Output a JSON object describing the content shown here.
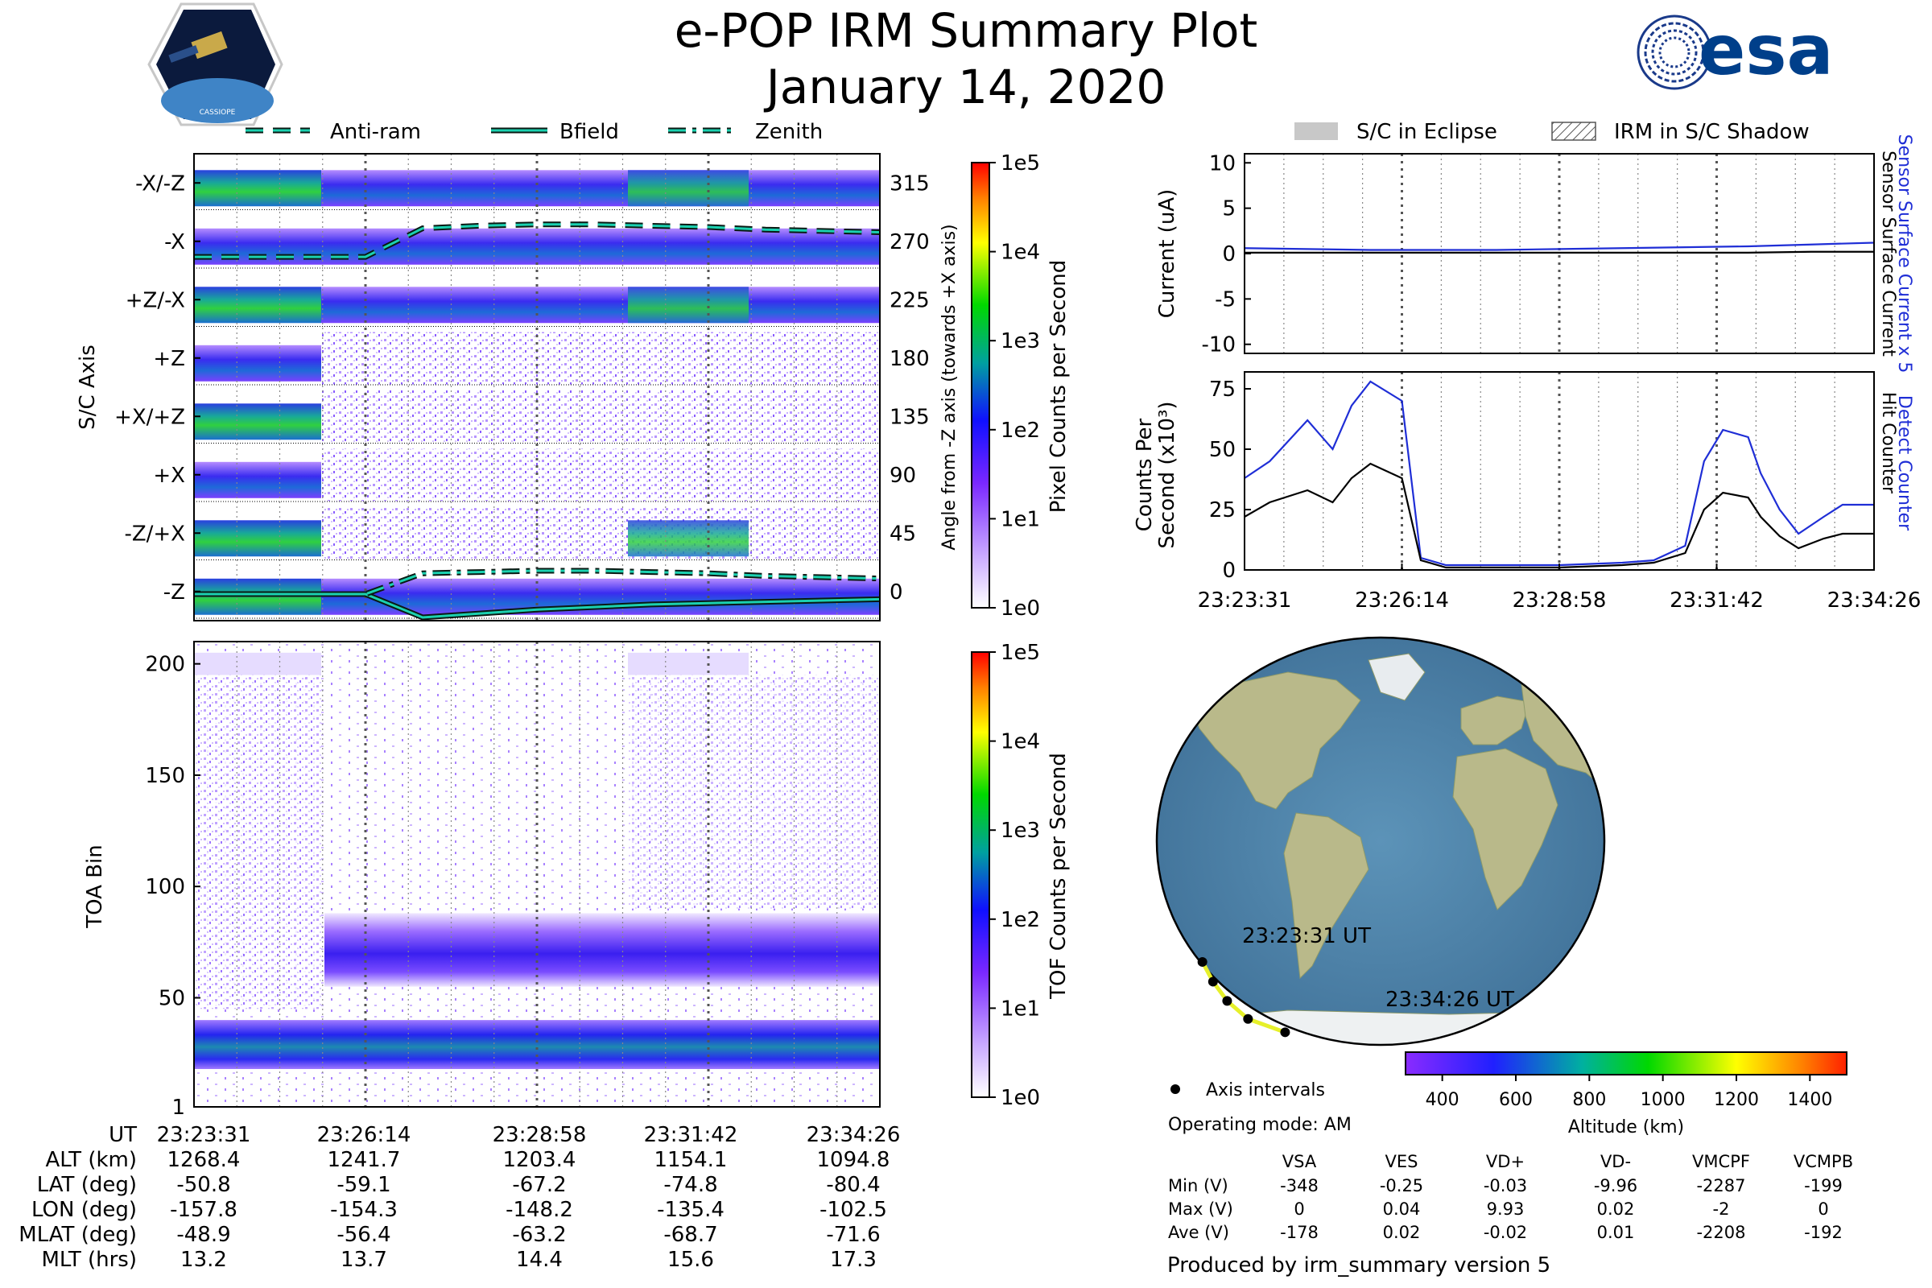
{
  "header": {
    "title_line1": "e-POP IRM Summary Plot",
    "title_line2": "January 14, 2020",
    "cassiope_logo_text": "CASSIOPE",
    "esa_logo_text": "esa"
  },
  "legend_top_left": [
    {
      "label": "Anti-ram",
      "style": "dashed"
    },
    {
      "label": "Bfield",
      "style": "solid"
    },
    {
      "label": "Zenith",
      "style": "dashdot"
    }
  ],
  "legend_top_right": [
    {
      "label": "S/C in Eclipse",
      "style": "filled-gray"
    },
    {
      "label": "IRM in S/C Shadow",
      "style": "hatched"
    }
  ],
  "colors": {
    "line_cyan": "#1bd1b0",
    "blue_trace": "#1f2ed6",
    "map_ocean": "#4a7ea3",
    "map_land": "#b7b88a",
    "track": "#e6f02a"
  },
  "chart_data": [
    {
      "type": "heatmap",
      "id": "pixel_counts",
      "ylabel": "S/C Axis",
      "y_tick_labels": [
        "-X/-Z",
        "-X",
        "+Z/-X",
        "+Z",
        "+X/+Z",
        "+X",
        "-Z/+X",
        "-Z"
      ],
      "right_axis_label": "Angle from -Z axis (towards +X axis)",
      "right_tick_labels": [
        "315",
        "270",
        "225",
        "180",
        "135",
        "90",
        "45",
        "0"
      ],
      "colorbar_label": "Pixel Counts per Second",
      "colorbar_ticks": [
        "1e0",
        "1e1",
        "1e2",
        "1e3",
        "1e4",
        "1e5"
      ],
      "x_range": [
        "23:23:31",
        "23:34:26"
      ],
      "series": [
        {
          "name": "Anti-ram",
          "angle_deg": [
            258,
            258,
            258,
            258,
            280,
            282,
            283,
            283,
            282,
            281,
            279,
            278,
            277
          ]
        },
        {
          "name": "Bfield",
          "angle_deg": [
            -2,
            -2,
            -2,
            -2,
            -20,
            -17,
            -14,
            -12,
            -10,
            -9,
            -8,
            -7,
            -6
          ]
        },
        {
          "name": "Zenith",
          "angle_deg": [
            -2,
            -2,
            -2,
            -2,
            14,
            15,
            16,
            16,
            15,
            14,
            12,
            11,
            10
          ]
        }
      ]
    },
    {
      "type": "heatmap",
      "id": "tof_counts",
      "ylabel": "TOA Bin",
      "y_tick_labels": [
        "1",
        "50",
        "100",
        "150",
        "200"
      ],
      "ylim": [
        1,
        210
      ],
      "colorbar_label": "TOF Counts per Second",
      "colorbar_ticks": [
        "1e0",
        "1e1",
        "1e2",
        "1e3",
        "1e4",
        "1e5"
      ],
      "x_range": [
        "23:23:31",
        "23:34:26"
      ]
    },
    {
      "type": "line",
      "id": "current",
      "ylabel": "Current (uA)",
      "yticks": [
        -10,
        -5,
        0,
        5,
        10
      ],
      "ylim": [
        -11,
        11
      ],
      "right_labels": [
        "Sensor Surface Current x 5",
        "Sensor Surface Current"
      ],
      "x": [
        0,
        1,
        2,
        3,
        4,
        5,
        6,
        7,
        8,
        9,
        10
      ],
      "series": [
        {
          "name": "Sensor Surface Current x 5",
          "color": "#1f2ed6",
          "values": [
            0.6,
            0.5,
            0.4,
            0.4,
            0.4,
            0.5,
            0.6,
            0.7,
            0.8,
            1.0,
            1.2
          ]
        },
        {
          "name": "Sensor Surface Current",
          "color": "#000000",
          "values": [
            0.1,
            0.1,
            0.1,
            0.1,
            0.1,
            0.1,
            0.1,
            0.1,
            0.1,
            0.2,
            0.2
          ]
        }
      ]
    },
    {
      "type": "line",
      "id": "counts",
      "ylabel": "Counts Per Second (x10^3)",
      "ylabel_line1": "Counts Per",
      "ylabel_line2": "Second (x10³)",
      "yticks": [
        0,
        25,
        50,
        75
      ],
      "ylim": [
        0,
        82
      ],
      "right_labels": [
        "Detect Counter",
        "Hit Counter"
      ],
      "x_tick_labels": [
        "23:23:31",
        "23:26:14",
        "23:28:58",
        "23:31:42",
        "23:34:26"
      ],
      "x": [
        0,
        0.04,
        0.1,
        0.14,
        0.17,
        0.2,
        0.25,
        0.28,
        0.32,
        0.36,
        0.4,
        0.5,
        0.6,
        0.65,
        0.7,
        0.73,
        0.76,
        0.8,
        0.82,
        0.85,
        0.88,
        0.92,
        0.95,
        1.0
      ],
      "series": [
        {
          "name": "Detect Counter",
          "color": "#1f2ed6",
          "values": [
            38,
            45,
            62,
            50,
            68,
            78,
            70,
            5,
            2,
            2,
            2,
            2,
            3,
            4,
            10,
            45,
            58,
            55,
            40,
            25,
            15,
            22,
            27,
            27
          ]
        },
        {
          "name": "Hit Counter",
          "color": "#000000",
          "values": [
            22,
            28,
            33,
            28,
            38,
            44,
            38,
            4,
            1,
            1,
            1,
            1,
            2,
            3,
            7,
            25,
            32,
            30,
            22,
            14,
            9,
            13,
            15,
            15
          ]
        }
      ]
    },
    {
      "type": "map",
      "id": "orbit_track",
      "start_label": "23:23:31 UT",
      "end_label": "23:34:26 UT",
      "track_lon": [
        -157.8,
        -154.3,
        -148.2,
        -135.4,
        -102.5
      ],
      "track_lat": [
        -50.8,
        -59.1,
        -67.2,
        -74.8,
        -80.4
      ],
      "altitude_colorbar_label": "Altitude (km)",
      "altitude_ticks": [
        "400",
        "600",
        "800",
        "1000",
        "1200",
        "1400"
      ]
    }
  ],
  "orbit_table": {
    "headers": [
      "UT",
      "ALT (km)",
      "LAT (deg)",
      "LON (deg)",
      "MLAT (deg)",
      "MLT (hrs)"
    ],
    "columns": [
      [
        "23:23:31",
        "1268.4",
        "-50.8",
        "-157.8",
        "-48.9",
        "13.2"
      ],
      [
        "23:26:14",
        "1241.7",
        "-59.1",
        "-154.3",
        "-56.4",
        "13.7"
      ],
      [
        "23:28:58",
        "1203.4",
        "-67.2",
        "-148.2",
        "-63.2",
        "14.4"
      ],
      [
        "23:31:42",
        "1154.1",
        "-74.8",
        "-135.4",
        "-68.7",
        "15.6"
      ],
      [
        "23:34:26",
        "1094.8",
        "-80.4",
        "-102.5",
        "-71.6",
        "17.3"
      ]
    ]
  },
  "map_legend": {
    "axis_intervals": "Axis intervals",
    "operating_mode": "Operating mode: AM"
  },
  "voltage_table": {
    "headers": [
      "VSA",
      "VES",
      "VD+",
      "VD-",
      "VMCPF",
      "VCMPB"
    ],
    "rows": [
      {
        "label": "Min (V)",
        "values": [
          "-348",
          "-0.25",
          "-0.03",
          "-9.96",
          "-2287",
          "-199"
        ]
      },
      {
        "label": "Max (V)",
        "values": [
          "0",
          "0.04",
          "9.93",
          "0.02",
          "-2",
          "0"
        ]
      },
      {
        "label": "Ave (V)",
        "values": [
          "-178",
          "0.02",
          "-0.02",
          "0.01",
          "-2208",
          "-192"
        ]
      }
    ]
  },
  "footer": {
    "produced_by": "Produced by irm_summary version 5"
  }
}
